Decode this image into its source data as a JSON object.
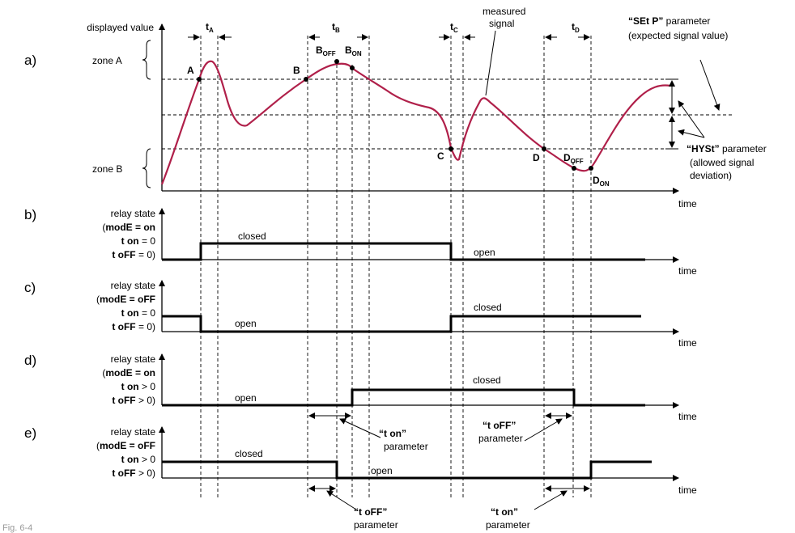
{
  "panels": {
    "a": "a)",
    "b": "b)",
    "c": "c)",
    "d": "d)",
    "e": "e)"
  },
  "axis": {
    "displayed_value": "displayed value",
    "time": "time"
  },
  "zones": {
    "a": "zone A",
    "b": "zone B"
  },
  "intervals": {
    "tA": "t",
    "tA_sub": "A",
    "tB": "t",
    "tB_sub": "B",
    "tC": "t",
    "tC_sub": "C",
    "tD": "t",
    "tD_sub": "D"
  },
  "points": {
    "A": "A",
    "B": "B",
    "Boff": "B",
    "Boff_sub": "OFF",
    "Bon": "B",
    "Bon_sub": "ON",
    "C": "C",
    "D": "D",
    "Doff": "D",
    "Doff_sub": "OFF",
    "Don": "D",
    "Don_sub": "ON"
  },
  "signal_label": {
    "line1": "measured",
    "line2": "signal"
  },
  "setp": {
    "name": "“SEt P”",
    "rest": " parameter",
    "desc": "(expected signal value)"
  },
  "hyst": {
    "name": "“HYSt”",
    "rest": " parameter",
    "desc1": "(allowed signal",
    "desc2": "deviation)"
  },
  "relay_panels": [
    {
      "title": "relay state",
      "mode_open": "(",
      "mode": "modE = on",
      "ton_key": "t on",
      "ton_val": " =  0",
      "toff_key": "t oFF",
      "toff_val": " = 0)"
    },
    {
      "title": "relay state",
      "mode_open": "(",
      "mode": "modE = oFF",
      "ton_key": "t on",
      "ton_val": " =  0",
      "toff_key": "t oFF",
      "toff_val": " = 0)"
    },
    {
      "title": "relay state",
      "mode_open": "(",
      "mode": "modE = on",
      "ton_key": "t on",
      "ton_val": " >  0",
      "toff_key": "t oFF",
      "toff_val": " > 0)"
    },
    {
      "title": "relay state",
      "mode_open": "(",
      "mode": "modE = oFF",
      "ton_key": "t on",
      "ton_val": " >  0",
      "toff_key": "t oFF",
      "toff_val": " > 0)"
    }
  ],
  "states": {
    "b_closed": "closed",
    "b_open": "open",
    "c_open": "open",
    "c_closed": "closed",
    "d_open": "open",
    "d_closed": "closed",
    "e_closed": "closed",
    "e_open": "open"
  },
  "params": {
    "d_ton": "“t on”",
    "d_ton_p": "parameter",
    "d_toff": "“t oFF”",
    "d_toff_p": "parameter",
    "e_toff": "“t oFF”",
    "e_toff_p": "parameter",
    "e_ton": "“t on”",
    "e_ton_p": "parameter"
  },
  "footer": "Fig. 6-4"
}
